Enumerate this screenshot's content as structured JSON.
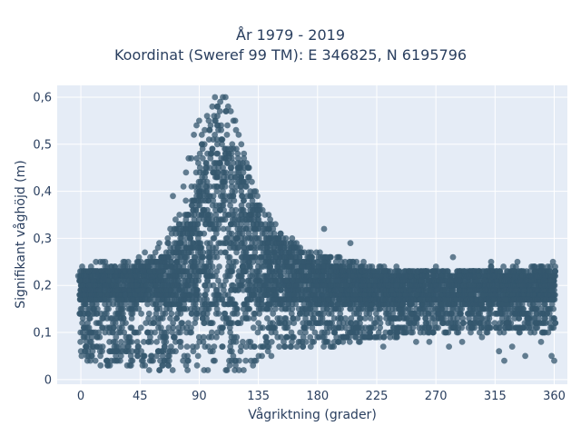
{
  "chart_data": {
    "type": "scatter",
    "title_line1": "År 1979 - 2019",
    "title_line2": "Koordinat (Sweref 99 TM): E 346825, N 6195796",
    "xlabel": "Vågriktning (grader)",
    "ylabel": "Signifikant våghöjd (m)",
    "xlim": [
      -18,
      370
    ],
    "ylim": [
      -0.01,
      0.625
    ],
    "xticks": [
      0,
      45,
      90,
      135,
      180,
      225,
      270,
      315,
      360
    ],
    "xtick_labels": [
      "0",
      "45",
      "90",
      "135",
      "180",
      "225",
      "270",
      "315",
      "360"
    ],
    "yticks": [
      0,
      0.1,
      0.2,
      0.3,
      0.4,
      0.5,
      0.6
    ],
    "ytick_labels": [
      "0",
      "0,1",
      "0,2",
      "0,3",
      "0,4",
      "0,5",
      "0,6"
    ],
    "grid": true,
    "marker_color": "#34576e",
    "plot_background": "#e5ecf6",
    "envelope": {
      "x": [
        0,
        10,
        20,
        30,
        40,
        45,
        55,
        65,
        75,
        80,
        85,
        90,
        95,
        100,
        105,
        110,
        115,
        120,
        125,
        130,
        135,
        140,
        145,
        150,
        160,
        170,
        180,
        190,
        200,
        210,
        225,
        240,
        270,
        300,
        330,
        360
      ],
      "upper": [
        0.24,
        0.245,
        0.25,
        0.25,
        0.26,
        0.27,
        0.28,
        0.3,
        0.34,
        0.38,
        0.44,
        0.5,
        0.54,
        0.57,
        0.59,
        0.6,
        0.58,
        0.54,
        0.49,
        0.44,
        0.39,
        0.36,
        0.34,
        0.32,
        0.3,
        0.28,
        0.27,
        0.26,
        0.255,
        0.25,
        0.24,
        0.235,
        0.235,
        0.235,
        0.24,
        0.245
      ],
      "lower": [
        0.05,
        0.04,
        0.03,
        0.03,
        0.03,
        0.02,
        0.02,
        0.02,
        0.02,
        0.02,
        0.02,
        0.02,
        0.02,
        0.02,
        0.02,
        0.02,
        0.02,
        0.02,
        0.02,
        0.02,
        0.03,
        0.04,
        0.05,
        0.06,
        0.06,
        0.06,
        0.07,
        0.07,
        0.08,
        0.08,
        0.09,
        0.09,
        0.1,
        0.1,
        0.1,
        0.1
      ]
    },
    "dense_core": {
      "x": [
        0,
        45,
        70,
        90,
        100,
        110,
        120,
        135,
        150,
        180,
        225,
        270,
        315,
        360
      ],
      "upper": [
        0.23,
        0.24,
        0.27,
        0.42,
        0.5,
        0.52,
        0.46,
        0.36,
        0.3,
        0.25,
        0.23,
        0.23,
        0.23,
        0.235
      ],
      "lower": [
        0.17,
        0.17,
        0.15,
        0.13,
        0.1,
        0.1,
        0.12,
        0.14,
        0.16,
        0.16,
        0.16,
        0.16,
        0.16,
        0.17
      ]
    },
    "points": [
      [
        -2,
        0.22
      ],
      [
        -1,
        0.18
      ],
      [
        1,
        0.24
      ],
      [
        2,
        0.09
      ],
      [
        3,
        0.06
      ],
      [
        5,
        0.04
      ],
      [
        8,
        0.05
      ],
      [
        12,
        0.07
      ],
      [
        15,
        0.03
      ],
      [
        20,
        0.13
      ],
      [
        25,
        0.11
      ],
      [
        28,
        0.04
      ],
      [
        32,
        0.14
      ],
      [
        35,
        0.08
      ],
      [
        38,
        0.16
      ],
      [
        42,
        0.1
      ],
      [
        48,
        0.21
      ],
      [
        52,
        0.19
      ],
      [
        56,
        0.13
      ],
      [
        60,
        0.17
      ],
      [
        62,
        0.26
      ],
      [
        65,
        0.27
      ],
      [
        68,
        0.32
      ],
      [
        70,
        0.39
      ],
      [
        72,
        0.34
      ],
      [
        75,
        0.35
      ],
      [
        78,
        0.41
      ],
      [
        80,
        0.44
      ],
      [
        82,
        0.47
      ],
      [
        84,
        0.47
      ],
      [
        86,
        0.52
      ],
      [
        88,
        0.54
      ],
      [
        90,
        0.55
      ],
      [
        92,
        0.52
      ],
      [
        94,
        0.5
      ],
      [
        96,
        0.56
      ],
      [
        98,
        0.53
      ],
      [
        100,
        0.58
      ],
      [
        102,
        0.6
      ],
      [
        104,
        0.58
      ],
      [
        106,
        0.59
      ],
      [
        108,
        0.6
      ],
      [
        110,
        0.6
      ],
      [
        112,
        0.58
      ],
      [
        114,
        0.57
      ],
      [
        116,
        0.55
      ],
      [
        118,
        0.53
      ],
      [
        120,
        0.52
      ],
      [
        122,
        0.5
      ],
      [
        124,
        0.47
      ],
      [
        126,
        0.46
      ],
      [
        128,
        0.43
      ],
      [
        130,
        0.42
      ],
      [
        133,
        0.4
      ],
      [
        136,
        0.37
      ],
      [
        140,
        0.35
      ],
      [
        144,
        0.34
      ],
      [
        148,
        0.33
      ],
      [
        152,
        0.31
      ],
      [
        156,
        0.3
      ],
      [
        160,
        0.29
      ],
      [
        165,
        0.28
      ],
      [
        170,
        0.27
      ],
      [
        175,
        0.27
      ],
      [
        178,
        0.1
      ],
      [
        185,
        0.32
      ],
      [
        187,
        0.12
      ],
      [
        195,
        0.26
      ],
      [
        200,
        0.09
      ],
      [
        205,
        0.29
      ],
      [
        210,
        0.1
      ],
      [
        215,
        0.25
      ],
      [
        220,
        0.1
      ],
      [
        230,
        0.07
      ],
      [
        240,
        0.24
      ],
      [
        250,
        0.23
      ],
      [
        255,
        0.08
      ],
      [
        265,
        0.08
      ],
      [
        270,
        0.24
      ],
      [
        280,
        0.07
      ],
      [
        283,
        0.26
      ],
      [
        290,
        0.08
      ],
      [
        300,
        0.22
      ],
      [
        305,
        0.09
      ],
      [
        312,
        0.25
      ],
      [
        318,
        0.06
      ],
      [
        322,
        0.04
      ],
      [
        328,
        0.07
      ],
      [
        332,
        0.25
      ],
      [
        338,
        0.05
      ],
      [
        345,
        0.24
      ],
      [
        350,
        0.08
      ],
      [
        355,
        0.24
      ],
      [
        358,
        0.05
      ],
      [
        360,
        0.04
      ],
      [
        359,
        0.25
      ]
    ]
  }
}
